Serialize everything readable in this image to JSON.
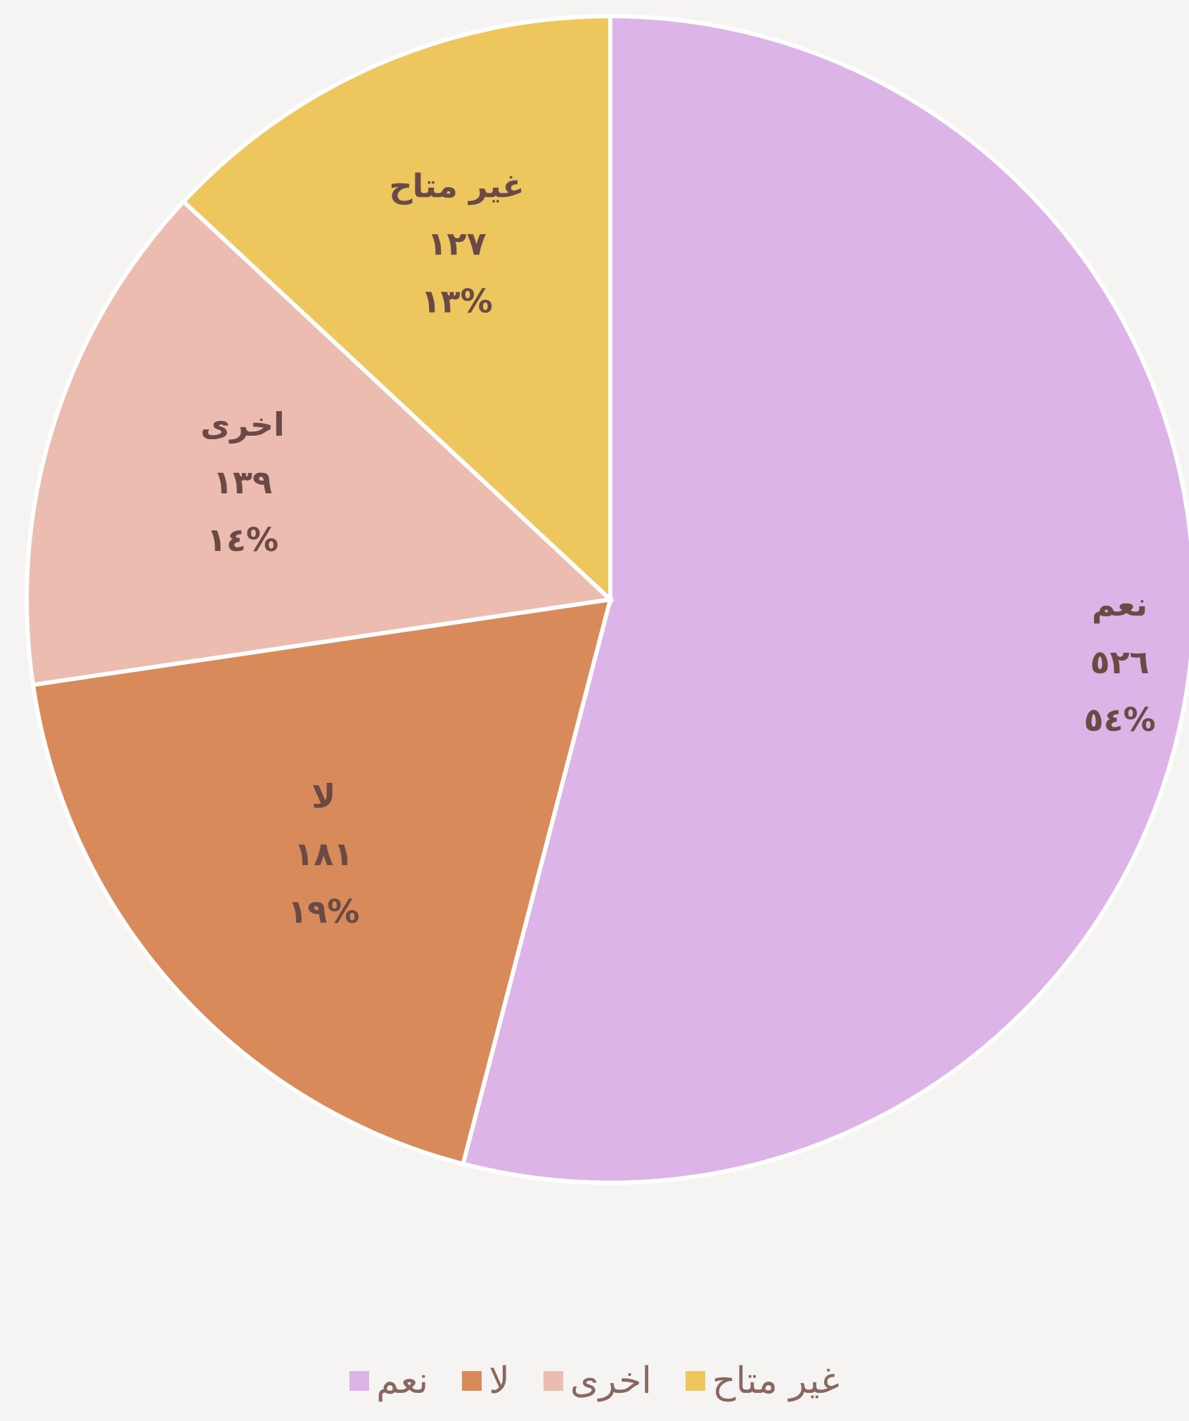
{
  "chart_data": {
    "type": "pie",
    "slices": [
      {
        "label": "نعم",
        "count": "٥٢٦",
        "percent_label": "%٥٤",
        "value": 526,
        "color": "#dcb4e8"
      },
      {
        "label": "لا",
        "count": "١٨١",
        "percent_label": "%١٩",
        "value": 181,
        "color": "#d98a5a"
      },
      {
        "label": "اخرى",
        "count": "١٣٩",
        "percent_label": "%١٤",
        "value": 139,
        "color": "#ecbcb0"
      },
      {
        "label": "غير متاح",
        "count": "١٢٧",
        "percent_label": "%١٣",
        "value": 127,
        "color": "#eec65e"
      }
    ],
    "legend": {
      "placement": "bottom",
      "items": [
        "غير متاح",
        "اخرى",
        "لا",
        "نعم"
      ]
    }
  }
}
